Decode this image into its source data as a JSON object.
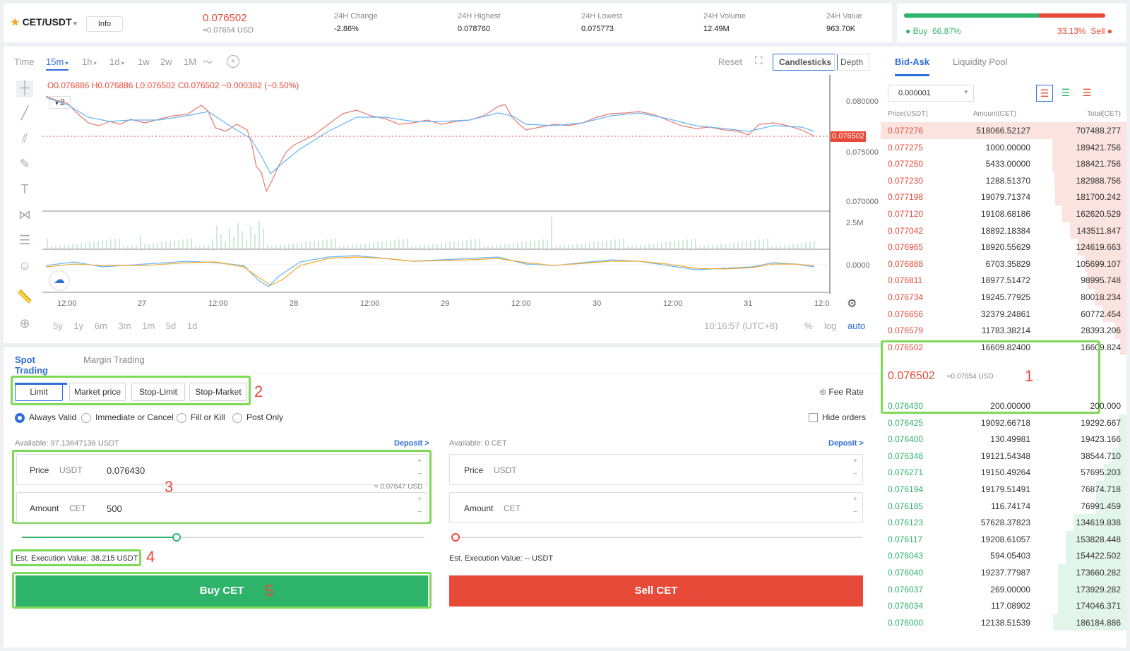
{
  "header": {
    "pair": "CET/USDT",
    "info": "Info",
    "last_price": "0.076502",
    "last_usd": "≈0.07654 USD",
    "stats": [
      {
        "label": "24H Change",
        "value": "-2.86%"
      },
      {
        "label": "24H Highest",
        "value": "0.078760"
      },
      {
        "label": "24H Lowest",
        "value": "0.075773"
      },
      {
        "label": "24H Volume",
        "value": "12.49M"
      },
      {
        "label": "24H Value",
        "value": "963.70K"
      }
    ]
  },
  "buysell": {
    "buy_label": "Buy",
    "buy_pct": "66.87%",
    "sell_pct": "33.13%",
    "sell_label": "Sell",
    "buy_fraction": 0.6687
  },
  "chart": {
    "timeframes": [
      "Time",
      "15m",
      "1h",
      "1d",
      "1w",
      "2w",
      "1M"
    ],
    "active_tf": "15m",
    "reset": "Reset",
    "candles": "Candlesticks",
    "depth": "Depth",
    "ohlc": "O0.076886 H0.076886 L0.076502 C0.076502 −0.000382 (−0.50%)",
    "collapse": "2",
    "price_axis": [
      "0.080000",
      "0.075000",
      "0.070000"
    ],
    "last_tag": "0.076502",
    "vol_axis": "2.5M",
    "macd_axis": "0.0000",
    "time_axis": [
      "12:00",
      "27",
      "12:00",
      "28",
      "12:00",
      "29",
      "12:00",
      "30",
      "12:00",
      "31",
      "12:0"
    ],
    "ranges": [
      "5y",
      "1y",
      "6m",
      "3m",
      "1m",
      "5d",
      "1d"
    ],
    "clock": "10:16:57 (UTC+8)",
    "pct": "%",
    "log": "log",
    "auto": "auto"
  },
  "trade": {
    "tabs": [
      "Spot Trading",
      "Margin Trading"
    ],
    "order_types": [
      "Limit",
      "Market price",
      "Stop-Limit",
      "Stop-Market"
    ],
    "tif": [
      "Always Valid",
      "Immediate or Cancel",
      "Fill or Kill",
      "Post Only"
    ],
    "fee_rate": "Fee Rate",
    "hide_orders": "Hide orders",
    "buy": {
      "available": "Available: 97.13647136 USDT",
      "deposit": "Deposit >",
      "price_label": "Price",
      "price_unit": "USDT",
      "price": "0.076430",
      "price_usd": "≈ 0.07647 USD",
      "amount_label": "Amount",
      "amount_unit": "CET",
      "amount": "500",
      "est": "Est. Execution Value: 38.215 USDT",
      "button": "Buy CET"
    },
    "sell": {
      "available": "Available: 0 CET",
      "deposit": "Deposit >",
      "price_label": "Price",
      "price_unit": "USDT",
      "amount_label": "Amount",
      "amount_unit": "CET",
      "est": "Est. Execution Value: -- USDT",
      "button": "Sell CET"
    },
    "annotations": [
      "1",
      "2",
      "3",
      "4",
      "5"
    ]
  },
  "orderbook": {
    "tabs": [
      "Bid-Ask",
      "Liquidity Pool"
    ],
    "precision": "0.000001",
    "cols": [
      "Price(USDT)",
      "Amount(CET)",
      "Total(CET)"
    ],
    "asks": [
      [
        "0.077276",
        "518066.52127",
        "707488.277"
      ],
      [
        "0.077275",
        "1000.00000",
        "189421.756"
      ],
      [
        "0.077250",
        "5433.00000",
        "188421.756"
      ],
      [
        "0.077230",
        "1288.51370",
        "182988.756"
      ],
      [
        "0.077198",
        "19079.71374",
        "181700.242"
      ],
      [
        "0.077120",
        "19108.68186",
        "162620.529"
      ],
      [
        "0.077042",
        "18892.18384",
        "143511.847"
      ],
      [
        "0.076965",
        "18920.55629",
        "124619.663"
      ],
      [
        "0.076888",
        "6703.35829",
        "105699.107"
      ],
      [
        "0.076811",
        "18977.51472",
        "98995.748"
      ],
      [
        "0.076734",
        "19245.77925",
        "80018.234"
      ],
      [
        "0.076656",
        "32379.24861",
        "60772.454"
      ],
      [
        "0.076579",
        "11783.38214",
        "28393.206"
      ],
      [
        "0.076502",
        "16609.82400",
        "16609.824"
      ]
    ],
    "mid_price": "0.076502",
    "mid_usd": "≈0.07654 USD",
    "bids": [
      [
        "0.076430",
        "200.00000",
        "200.000"
      ],
      [
        "0.076425",
        "19092.66718",
        "19292.667"
      ],
      [
        "0.076400",
        "130.49981",
        "19423.166"
      ],
      [
        "0.076348",
        "19121.54348",
        "38544.710"
      ],
      [
        "0.076271",
        "19150.49264",
        "57695.203"
      ],
      [
        "0.076194",
        "19179.51491",
        "76874.718"
      ],
      [
        "0.076185",
        "116.74174",
        "76991.459"
      ],
      [
        "0.076123",
        "57628.37823",
        "134619.838"
      ],
      [
        "0.076117",
        "19208.61057",
        "153828.448"
      ],
      [
        "0.076043",
        "594.05403",
        "154422.502"
      ],
      [
        "0.076040",
        "19237.77987",
        "173660.282"
      ],
      [
        "0.076037",
        "269.00000",
        "173929.282"
      ],
      [
        "0.076034",
        "117.08902",
        "174046.371"
      ],
      [
        "0.076000",
        "12138.51539",
        "186184.886"
      ]
    ],
    "colors": {
      "ask": "#e84a39",
      "bid": "#2eb36b",
      "ask_bg": "#fbe3df",
      "bid_bg": "#e2f5ea"
    }
  }
}
